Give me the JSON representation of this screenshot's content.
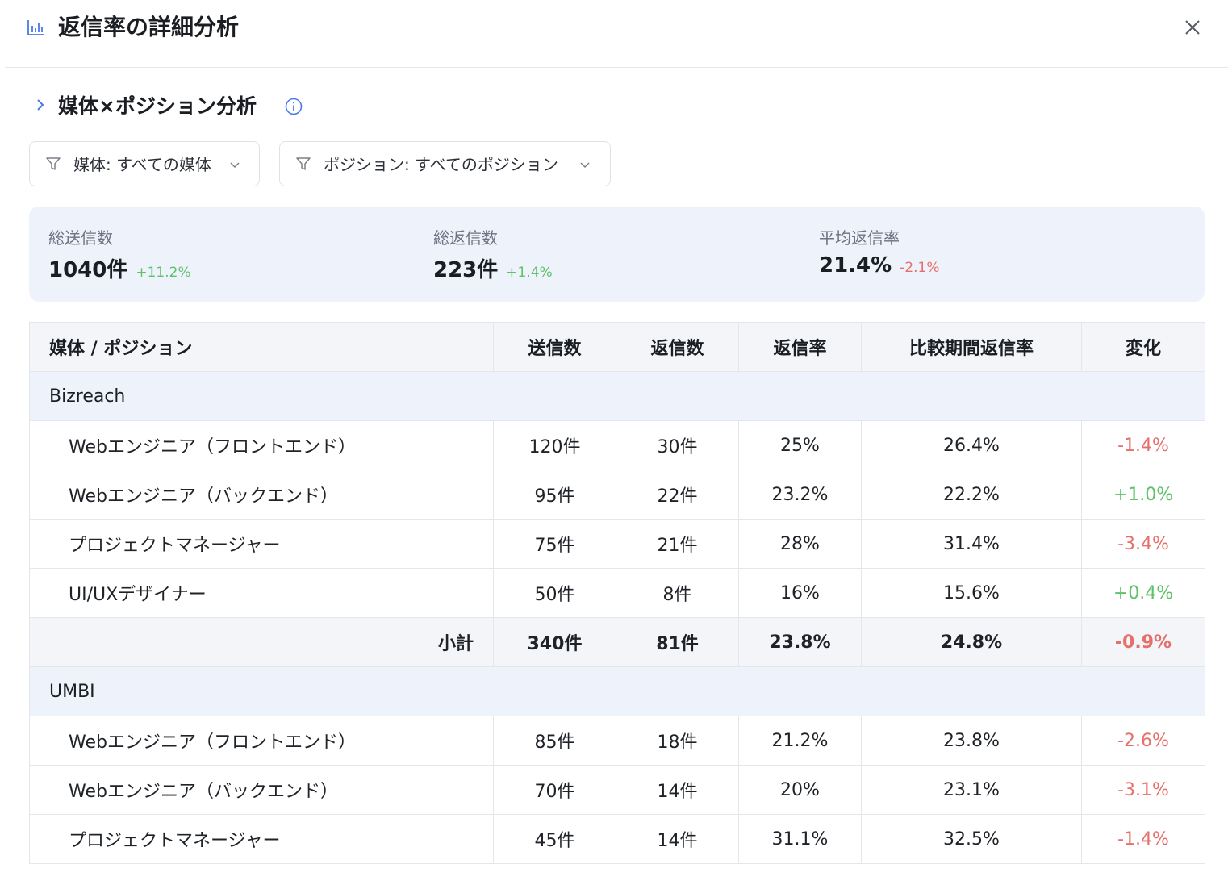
{
  "header": {
    "title": "返信率の詳細分析",
    "title_icon": "bar-chart-icon",
    "close_icon": "close-icon"
  },
  "section": {
    "title": "媒体×ポジション分析",
    "info_icon": "info-icon"
  },
  "filters": {
    "media": "媒体: すべての媒体",
    "position": "ポジション: すべてのポジション"
  },
  "summary": {
    "sent": {
      "label": "総送信数",
      "value": "1040件",
      "delta": "+11.2%"
    },
    "replies": {
      "label": "総返信数",
      "value": "223件",
      "delta": "+1.4%"
    },
    "rate": {
      "label": "平均返信率",
      "value": "21.4%",
      "delta": "-2.1%"
    }
  },
  "table": {
    "headers": [
      "媒体 / ポジション",
      "送信数",
      "返信数",
      "返信率",
      "比較期間返信率",
      "変化"
    ],
    "groups": [
      {
        "name": "Bizreach",
        "rows": [
          [
            "Webエンジニア（フロントエンド）",
            "120件",
            "30件",
            "25%",
            "26.4%",
            "-1.4%"
          ],
          [
            "Webエンジニア（バックエンド）",
            "95件",
            "22件",
            "23.2%",
            "22.2%",
            "+1.0%"
          ],
          [
            "プロジェクトマネージャー",
            "75件",
            "21件",
            "28%",
            "31.4%",
            "-3.4%"
          ],
          [
            "UI/UXデザイナー",
            "50件",
            "8件",
            "16%",
            "15.6%",
            "+0.4%"
          ]
        ],
        "subtotal": [
          "小計",
          "340件",
          "81件",
          "23.8%",
          "24.8%",
          "-0.9%"
        ]
      },
      {
        "name": "UMBI",
        "rows": [
          [
            "Webエンジニア（フロントエンド）",
            "85件",
            "18件",
            "21.2%",
            "23.8%",
            "-2.6%"
          ],
          [
            "Webエンジニア（バックエンド）",
            "70件",
            "14件",
            "20%",
            "23.1%",
            "-3.1%"
          ],
          [
            "プロジェクトマネージャー",
            "45件",
            "14件",
            "31.1%",
            "32.5%",
            "-1.4%"
          ]
        ]
      }
    ]
  },
  "colors": {
    "accent": "#4a78e6",
    "positive": "#5ec26a",
    "negative": "#e5706b",
    "summary_bg": "#eef2fb"
  }
}
